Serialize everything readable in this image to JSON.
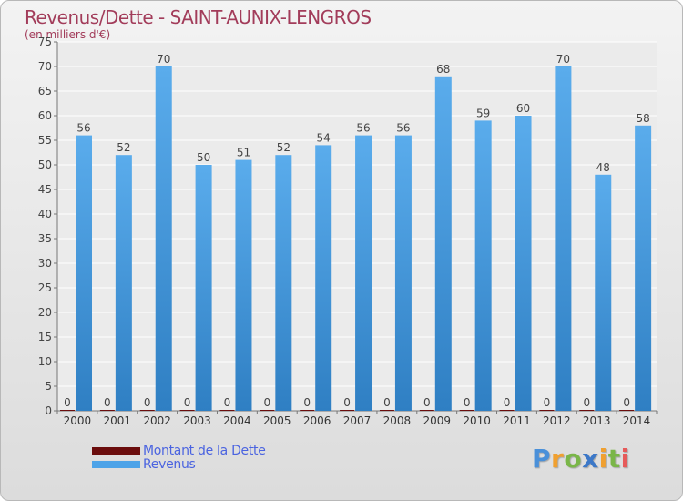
{
  "header": {
    "title": "Revenus/Dette - SAINT-AUNIX-LENGROS",
    "subtitle": "(en milliers d'€)"
  },
  "legend": {
    "items": [
      {
        "label": "Montant de la Dette",
        "color": "#6b0d0d"
      },
      {
        "label": "Revenus",
        "color": "#4da3e8"
      }
    ]
  },
  "logo": {
    "text": "Proxiti",
    "letters": [
      {
        "ch": "P",
        "color": "#4a90d9"
      },
      {
        "ch": "r",
        "color": "#f0a030"
      },
      {
        "ch": "o",
        "color": "#7ab648"
      },
      {
        "ch": "x",
        "color": "#3c78c8"
      },
      {
        "ch": "i",
        "color": "#f0a030"
      },
      {
        "ch": "t",
        "color": "#7ab648"
      },
      {
        "ch": "i",
        "color": "#e65a5a"
      }
    ]
  },
  "chart_data": {
    "type": "bar",
    "categories": [
      "2000",
      "2001",
      "2002",
      "2003",
      "2004",
      "2005",
      "2006",
      "2007",
      "2008",
      "2009",
      "2010",
      "2011",
      "2012",
      "2013",
      "2014"
    ],
    "series": [
      {
        "name": "Montant de la Dette",
        "color": "#6b0d0d",
        "values": [
          0,
          0,
          0,
          0,
          0,
          0,
          0,
          0,
          0,
          0,
          0,
          0,
          0,
          0,
          0
        ]
      },
      {
        "name": "Revenus",
        "color": "#4da3e8",
        "values": [
          56,
          52,
          70,
          50,
          51,
          52,
          54,
          56,
          56,
          68,
          59,
          60,
          70,
          48,
          58
        ]
      }
    ],
    "ylim": [
      0,
      75
    ],
    "yticks": [
      0,
      5,
      10,
      15,
      20,
      25,
      30,
      35,
      40,
      45,
      50,
      55,
      60,
      65,
      70,
      75
    ],
    "grid": true,
    "legend_position": "bottom-left"
  }
}
